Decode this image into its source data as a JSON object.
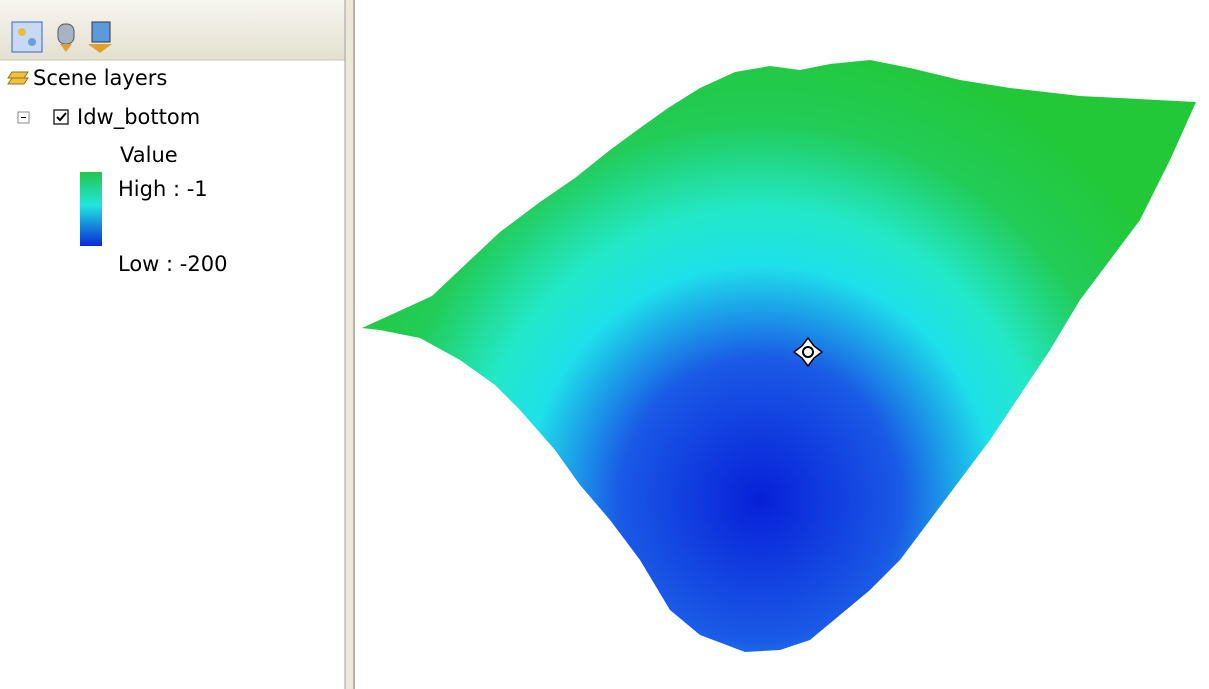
{
  "toc": {
    "root": "Scene layers",
    "layer": {
      "name": "Idw_bottom",
      "field": "Value",
      "high": "High : -1",
      "low": "Low : -200"
    }
  }
}
